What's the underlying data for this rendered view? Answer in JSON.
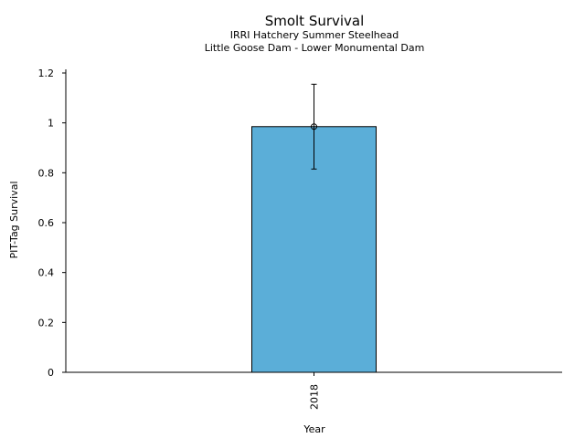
{
  "chart_data": {
    "type": "bar",
    "title": "Smolt Survival",
    "subtitle_lines": [
      "IRRI Hatchery Summer Steelhead",
      "Little Goose Dam - Lower Monumental Dam"
    ],
    "xlabel": "Year",
    "ylabel": "PIT-Tag Survival",
    "categories": [
      "2018"
    ],
    "values": [
      0.985
    ],
    "error_low": [
      0.815
    ],
    "error_high": [
      1.155
    ],
    "ylim": [
      0,
      1.2
    ],
    "yticks": [
      0,
      0.2,
      0.4,
      0.6,
      0.8,
      1,
      1.2
    ],
    "ytick_labels": [
      "0",
      "0.2",
      "0.4",
      "0.6",
      "0.8",
      "1",
      "1.2"
    ],
    "bar_color": "#5BAED8",
    "grid": false,
    "legend": "none"
  }
}
